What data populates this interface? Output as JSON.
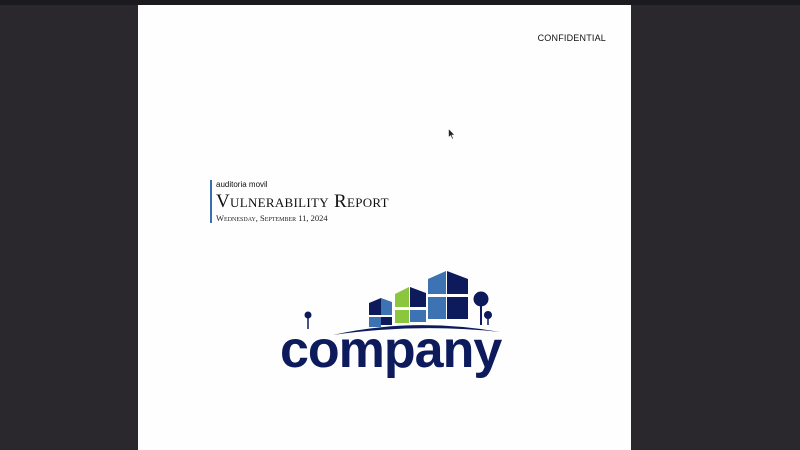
{
  "document": {
    "header_label": "CONFIDENTIAL",
    "organization": "auditoria movil",
    "title": "Vulnerability Report",
    "date": "Wednesday, September 11, 2024"
  },
  "logo": {
    "wordmark": "company",
    "colors": {
      "navy": "#0d1a5c",
      "blue": "#3d73b3",
      "green": "#8cc63f"
    }
  },
  "icons": {
    "cursor": "mouse-pointer-icon"
  }
}
